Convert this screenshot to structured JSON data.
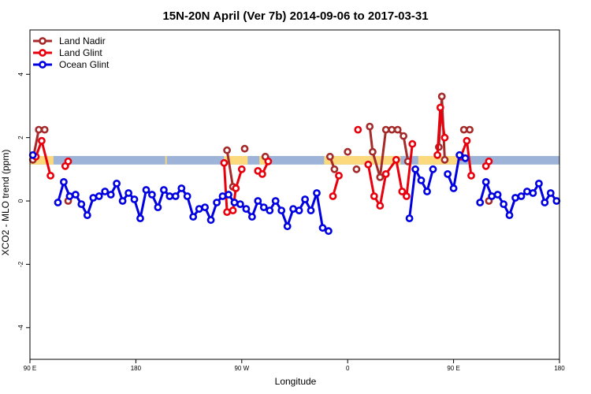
{
  "chart_data": {
    "type": "line",
    "title": "15N-20N April (Ver 7b)   2014-09-06 to 2017-03-31",
    "xlabel": "Longitude",
    "ylabel": "XCO2 - MLO trend (ppm)",
    "xlim": [
      0,
      360
    ],
    "ylim": [
      -5,
      5.4
    ],
    "x_ticks": [
      {
        "value": 0,
        "label": "90 E"
      },
      {
        "value": 72,
        "label": "180"
      },
      {
        "value": 144,
        "label": "90 W"
      },
      {
        "value": 216,
        "label": "0"
      },
      {
        "value": 288,
        "label": "90 E"
      },
      {
        "value": 360,
        "label": "180"
      }
    ],
    "y_ticks": [
      {
        "value": -4,
        "label": "-4"
      },
      {
        "value": -2,
        "label": "-2"
      },
      {
        "value": 0,
        "label": "0"
      },
      {
        "value": 2,
        "label": "2"
      },
      {
        "value": 4,
        "label": "4"
      }
    ],
    "legend_position": "top-left",
    "band_colors": {
      "blue": "#9db4d8",
      "yellow": "#fcd97c"
    },
    "band_y_range": [
      1.15,
      1.42
    ],
    "yellow_segments": [
      [
        0,
        16
      ],
      [
        92,
        93
      ],
      [
        132,
        148
      ],
      [
        156,
        160
      ],
      [
        200,
        252
      ],
      [
        264,
        292
      ]
    ],
    "series": [
      {
        "name": "Land Nadir",
        "color": "#a52a2a",
        "segments": [
          [
            [
              2,
              1.3
            ],
            [
              6,
              2.25
            ],
            [
              10,
              2.25
            ]
          ],
          [
            [
              26,
              0.0
            ]
          ],
          [
            [
              134,
              1.6
            ],
            [
              138,
              0.45
            ]
          ],
          [
            [
              146,
              1.65
            ]
          ],
          [
            [
              160,
              1.4
            ]
          ],
          [
            [
              204,
              1.4
            ],
            [
              207,
              1.0
            ]
          ],
          [
            [
              216,
              1.55
            ]
          ],
          [
            [
              222,
              1.0
            ]
          ],
          [
            [
              231,
              2.35
            ],
            [
              233,
              1.55
            ],
            [
              238,
              0.75
            ],
            [
              242,
              2.25
            ],
            [
              246,
              2.25
            ],
            [
              250,
              2.25
            ],
            [
              254,
              2.05
            ],
            [
              257,
              1.25
            ]
          ],
          [
            [
              278,
              1.7
            ],
            [
              280,
              3.3
            ],
            [
              282,
              1.3
            ]
          ],
          [
            [
              295,
              2.25
            ],
            [
              299,
              2.25
            ]
          ],
          [
            [
              312,
              0.0
            ]
          ]
        ]
      },
      {
        "name": "Land Glint",
        "color": "#e8000c",
        "segments": [
          [
            [
              4,
              1.4
            ],
            [
              8,
              1.9
            ],
            [
              14,
              0.8
            ]
          ],
          [
            [
              24,
              1.1
            ],
            [
              26,
              1.25
            ]
          ],
          [
            [
              132,
              1.2
            ],
            [
              134,
              -0.35
            ],
            [
              138,
              -0.3
            ],
            [
              140,
              0.4
            ],
            [
              144,
              1.0
            ]
          ],
          [
            [
              155,
              0.95
            ],
            [
              158,
              0.85
            ],
            [
              162,
              1.25
            ]
          ],
          [
            [
              206,
              0.15
            ],
            [
              210,
              0.8
            ]
          ],
          [
            [
              223,
              2.25
            ]
          ],
          [
            [
              230,
              1.15
            ],
            [
              234,
              0.15
            ],
            [
              238,
              -0.15
            ],
            [
              242,
              0.85
            ],
            [
              249,
              1.3
            ],
            [
              253,
              0.3
            ],
            [
              256,
              0.15
            ],
            [
              260,
              1.8
            ]
          ],
          [
            [
              277,
              1.45
            ],
            [
              279,
              2.95
            ],
            [
              282,
              2.0
            ]
          ],
          [
            [
              293,
              1.4
            ],
            [
              297,
              1.9
            ],
            [
              300,
              0.8
            ]
          ],
          [
            [
              310,
              1.1
            ],
            [
              312,
              1.25
            ]
          ]
        ]
      },
      {
        "name": "Ocean Glint",
        "color": "#0000e0",
        "segments": [
          [
            [
              2,
              1.45
            ]
          ],
          [
            [
              19,
              -0.05
            ],
            [
              23,
              0.6
            ],
            [
              27,
              0.15
            ],
            [
              31,
              0.2
            ],
            [
              35,
              -0.1
            ],
            [
              39,
              -0.45
            ],
            [
              43,
              0.1
            ],
            [
              47,
              0.15
            ],
            [
              51,
              0.3
            ],
            [
              55,
              0.2
            ],
            [
              59,
              0.55
            ],
            [
              63,
              0.0
            ],
            [
              67,
              0.25
            ],
            [
              71,
              0.05
            ],
            [
              75,
              -0.55
            ],
            [
              79,
              0.35
            ],
            [
              83,
              0.2
            ],
            [
              87,
              -0.2
            ],
            [
              91,
              0.35
            ],
            [
              95,
              0.15
            ],
            [
              99,
              0.15
            ],
            [
              103,
              0.4
            ],
            [
              107,
              0.15
            ],
            [
              111,
              -0.5
            ],
            [
              115,
              -0.25
            ],
            [
              119,
              -0.2
            ],
            [
              123,
              -0.6
            ],
            [
              127,
              -0.05
            ],
            [
              131,
              0.15
            ],
            [
              135,
              0.2
            ],
            [
              139,
              -0.05
            ],
            [
              143,
              -0.1
            ],
            [
              147,
              -0.25
            ],
            [
              151,
              -0.5
            ],
            [
              155,
              0.0
            ],
            [
              159,
              -0.2
            ],
            [
              163,
              -0.3
            ],
            [
              167,
              -0.0
            ],
            [
              171,
              -0.3
            ],
            [
              175,
              -0.8
            ],
            [
              179,
              -0.25
            ],
            [
              183,
              -0.3
            ],
            [
              187,
              0.05
            ],
            [
              191,
              -0.3
            ],
            [
              195,
              0.25
            ],
            [
              199,
              -0.85
            ],
            [
              203,
              -0.95
            ]
          ],
          [
            [
              258,
              -0.55
            ],
            [
              262,
              1.0
            ],
            [
              266,
              0.65
            ],
            [
              270,
              0.3
            ],
            [
              274,
              1.0
            ]
          ],
          [
            [
              284,
              0.85
            ],
            [
              288,
              0.4
            ],
            [
              292,
              1.45
            ],
            [
              296,
              1.35
            ]
          ],
          [
            [
              306,
              -0.05
            ],
            [
              310,
              0.6
            ],
            [
              314,
              0.15
            ],
            [
              318,
              0.2
            ],
            [
              322,
              -0.1
            ],
            [
              326,
              -0.45
            ],
            [
              330,
              0.1
            ],
            [
              334,
              0.15
            ],
            [
              338,
              0.3
            ],
            [
              342,
              0.25
            ],
            [
              346,
              0.55
            ],
            [
              350,
              -0.05
            ],
            [
              354,
              0.25
            ],
            [
              358,
              0.0
            ]
          ]
        ]
      }
    ]
  }
}
